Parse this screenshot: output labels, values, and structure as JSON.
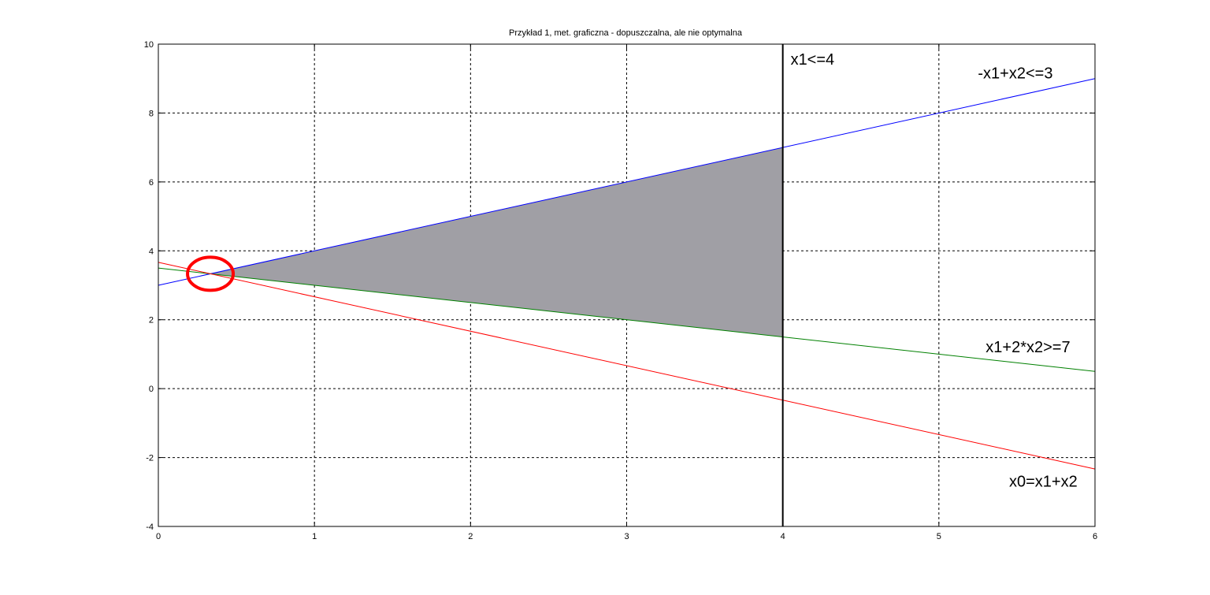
{
  "chart_data": {
    "type": "line",
    "title": "Przykład 1, met. graficzna - dopuszczalna, ale nie optymalna",
    "xlabel": "",
    "ylabel": "",
    "xlim": [
      0,
      6
    ],
    "ylim": [
      -4,
      10
    ],
    "x_ticks": [
      0,
      1,
      2,
      3,
      4,
      5,
      6
    ],
    "y_ticks": [
      -4,
      -2,
      0,
      2,
      4,
      6,
      8,
      10
    ],
    "x_tick_labels": [
      "0",
      "1",
      "2",
      "3",
      "4",
      "5",
      "6"
    ],
    "y_tick_labels": [
      "-4",
      "-2",
      "0",
      "2",
      "4",
      "6",
      "8",
      "10"
    ],
    "grid": true,
    "series": [
      {
        "id": "constraint-blue",
        "x": [
          0,
          6
        ],
        "y": [
          3,
          9
        ],
        "color": "#0000ff"
      },
      {
        "id": "constraint-green",
        "x": [
          0,
          6
        ],
        "y": [
          3.5,
          0.5
        ],
        "color": "#008000"
      },
      {
        "id": "objective-red",
        "x": [
          0,
          6
        ],
        "y": [
          3.6667,
          -2.3333
        ],
        "color": "#ff0000"
      },
      {
        "id": "constraint-vertical",
        "x": [
          4,
          4
        ],
        "y": [
          -4,
          10
        ],
        "color": "#000000"
      }
    ],
    "feasible_region": {
      "points": [
        [
          0.3333,
          3.3333
        ],
        [
          4,
          7
        ],
        [
          4,
          1.5
        ]
      ],
      "color": "#a09fa5"
    },
    "highlight": {
      "center": [
        0.3333,
        3.3333
      ],
      "color": "#ff0000"
    },
    "annotations": [
      {
        "text": "x1<=4",
        "x": 4.05,
        "y": 9.4
      },
      {
        "text": "-x1+x2<=3",
        "x": 5.25,
        "y": 9.0
      },
      {
        "text": "x1+2*x2>=7",
        "x": 5.3,
        "y": 1.05
      },
      {
        "text": "x0=x1+x2",
        "x": 5.45,
        "y": -2.85
      }
    ]
  }
}
